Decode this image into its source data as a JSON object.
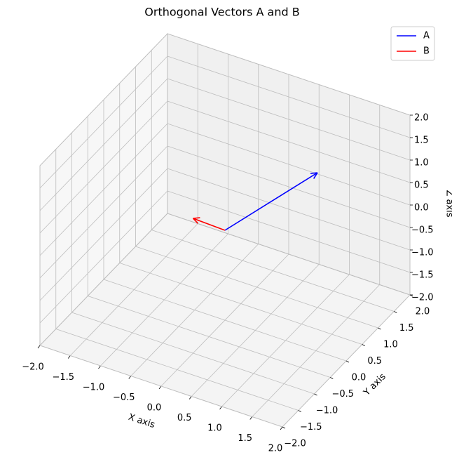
{
  "chart_data": {
    "type": "quiver3d",
    "title": "Orthogonal Vectors A and B",
    "xlabel": "X axis",
    "ylabel": "Y axis",
    "zlabel": "Z axis",
    "series": [
      {
        "name": "A",
        "color": "#0000ff",
        "origin": [
          0,
          0,
          0
        ],
        "values": [
          1,
          1,
          1
        ]
      },
      {
        "name": "B",
        "color": "#ff0000",
        "origin": [
          0,
          0,
          0
        ],
        "values": [
          0,
          -1,
          1
        ]
      }
    ],
    "xlim": [
      -2,
      2
    ],
    "ylim": [
      -2,
      2
    ],
    "zlim": [
      -2,
      2
    ],
    "xticks": [
      {
        "value": -2,
        "label": "−2.0"
      },
      {
        "value": -1.5,
        "label": "−1.5"
      },
      {
        "value": -1,
        "label": "−1.0"
      },
      {
        "value": -0.5,
        "label": "−0.5"
      },
      {
        "value": 0,
        "label": "0.0"
      },
      {
        "value": 0.5,
        "label": "0.5"
      },
      {
        "value": 1,
        "label": "1.0"
      },
      {
        "value": 1.5,
        "label": "1.5"
      },
      {
        "value": 2,
        "label": "2.0"
      }
    ],
    "yticks": [
      {
        "value": -2,
        "label": "−2.0"
      },
      {
        "value": -1.5,
        "label": "−1.5"
      },
      {
        "value": -1,
        "label": "−1.0"
      },
      {
        "value": -0.5,
        "label": "−0.5"
      },
      {
        "value": 0,
        "label": "0.0"
      },
      {
        "value": 0.5,
        "label": "0.5"
      },
      {
        "value": 1,
        "label": "1.0"
      },
      {
        "value": 1.5,
        "label": "1.5"
      },
      {
        "value": 2,
        "label": "2.0"
      }
    ],
    "zticks": [
      {
        "value": -2,
        "label": "−2.0"
      },
      {
        "value": -1.5,
        "label": "−1.5"
      },
      {
        "value": -1,
        "label": "−1.0"
      },
      {
        "value": -0.5,
        "label": "−0.5"
      },
      {
        "value": 0,
        "label": "0.0"
      },
      {
        "value": 0.5,
        "label": "0.5"
      },
      {
        "value": 1,
        "label": "1.0"
      },
      {
        "value": 1.5,
        "label": "1.5"
      },
      {
        "value": 2,
        "label": "2.0"
      }
    ],
    "grid": true,
    "legend": "upper right"
  }
}
